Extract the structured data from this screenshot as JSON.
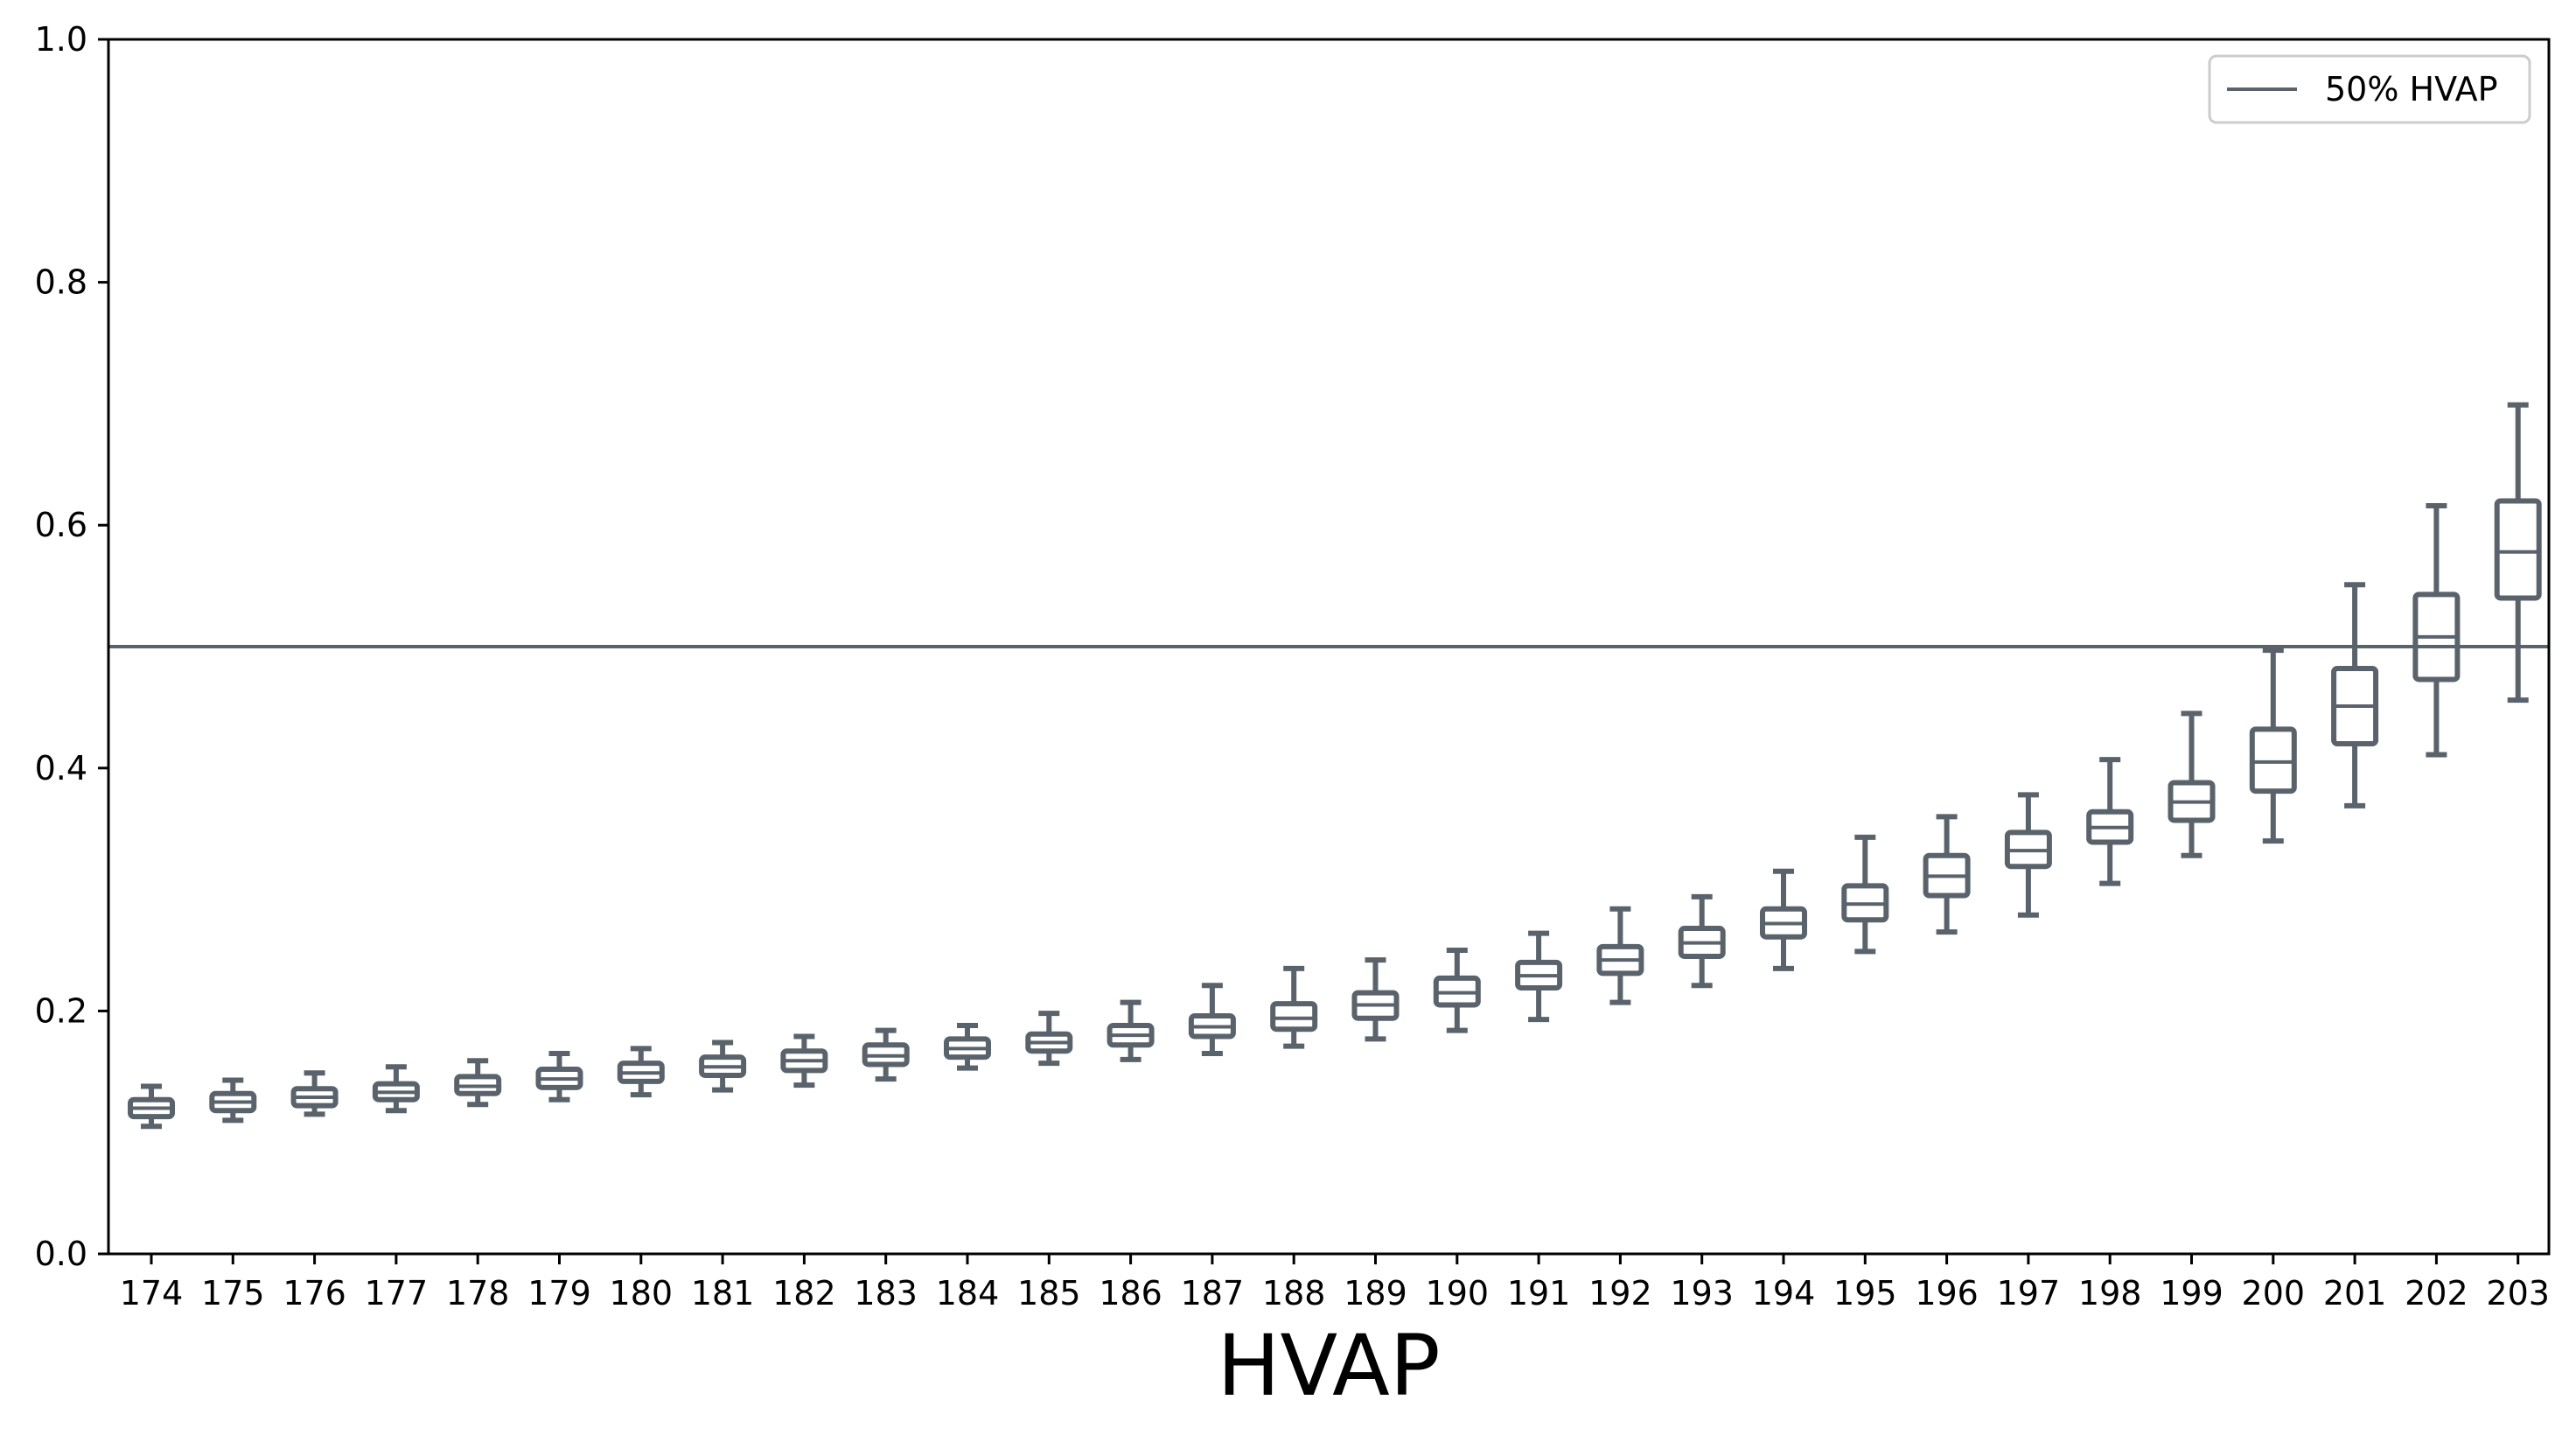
{
  "chart_data": {
    "type": "box",
    "title": "",
    "xlabel": "HVAP",
    "ylabel": "",
    "ylim": [
      0.0,
      1.0
    ],
    "yticks": [
      "0.0",
      "0.2",
      "0.4",
      "0.6",
      "0.8",
      "1.0"
    ],
    "grid": false,
    "legend": {
      "placement": "top-right",
      "entries": [
        {
          "label": "50% HVAP",
          "kind": "line"
        }
      ]
    },
    "reference_line": {
      "y": 0.5,
      "label": "50% HVAP"
    },
    "colors": {
      "box": "#5a636b",
      "reference": "#5a636b",
      "axis": "#000000"
    },
    "categories": [
      "174",
      "175",
      "176",
      "177",
      "178",
      "179",
      "180",
      "181",
      "182",
      "183",
      "184",
      "185",
      "186",
      "187",
      "188",
      "189",
      "190",
      "191",
      "192",
      "193",
      "194",
      "195",
      "196",
      "197",
      "198",
      "199",
      "200",
      "201",
      "202",
      "203"
    ],
    "boxes": [
      {
        "whislo": 0.105,
        "q1": 0.113,
        "med": 0.12,
        "q3": 0.127,
        "whishi": 0.138
      },
      {
        "whislo": 0.11,
        "q1": 0.118,
        "med": 0.125,
        "q3": 0.132,
        "whishi": 0.143
      },
      {
        "whislo": 0.115,
        "q1": 0.122,
        "med": 0.129,
        "q3": 0.136,
        "whishi": 0.149
      },
      {
        "whislo": 0.118,
        "q1": 0.127,
        "med": 0.133,
        "q3": 0.14,
        "whishi": 0.154
      },
      {
        "whislo": 0.123,
        "q1": 0.132,
        "med": 0.138,
        "q3": 0.146,
        "whishi": 0.159
      },
      {
        "whislo": 0.127,
        "q1": 0.137,
        "med": 0.144,
        "q3": 0.152,
        "whishi": 0.165
      },
      {
        "whislo": 0.131,
        "q1": 0.142,
        "med": 0.149,
        "q3": 0.157,
        "whishi": 0.169
      },
      {
        "whislo": 0.135,
        "q1": 0.147,
        "med": 0.154,
        "q3": 0.162,
        "whishi": 0.174
      },
      {
        "whislo": 0.139,
        "q1": 0.151,
        "med": 0.159,
        "q3": 0.167,
        "whishi": 0.179
      },
      {
        "whislo": 0.144,
        "q1": 0.156,
        "med": 0.163,
        "q3": 0.172,
        "whishi": 0.184
      },
      {
        "whislo": 0.153,
        "q1": 0.162,
        "med": 0.169,
        "q3": 0.177,
        "whishi": 0.188
      },
      {
        "whislo": 0.157,
        "q1": 0.167,
        "med": 0.174,
        "q3": 0.181,
        "whishi": 0.198
      },
      {
        "whislo": 0.16,
        "q1": 0.172,
        "med": 0.18,
        "q3": 0.188,
        "whishi": 0.207
      },
      {
        "whislo": 0.165,
        "q1": 0.179,
        "med": 0.187,
        "q3": 0.196,
        "whishi": 0.221
      },
      {
        "whislo": 0.171,
        "q1": 0.185,
        "med": 0.194,
        "q3": 0.206,
        "whishi": 0.235
      },
      {
        "whislo": 0.177,
        "q1": 0.194,
        "med": 0.205,
        "q3": 0.215,
        "whishi": 0.242
      },
      {
        "whislo": 0.184,
        "q1": 0.205,
        "med": 0.215,
        "q3": 0.227,
        "whishi": 0.25
      },
      {
        "whislo": 0.193,
        "q1": 0.219,
        "med": 0.229,
        "q3": 0.24,
        "whishi": 0.264
      },
      {
        "whislo": 0.207,
        "q1": 0.231,
        "med": 0.242,
        "q3": 0.253,
        "whishi": 0.284
      },
      {
        "whislo": 0.221,
        "q1": 0.245,
        "med": 0.256,
        "q3": 0.268,
        "whishi": 0.294
      },
      {
        "whislo": 0.235,
        "q1": 0.261,
        "med": 0.272,
        "q3": 0.284,
        "whishi": 0.315
      },
      {
        "whislo": 0.249,
        "q1": 0.275,
        "med": 0.288,
        "q3": 0.303,
        "whishi": 0.343
      },
      {
        "whislo": 0.265,
        "q1": 0.295,
        "med": 0.311,
        "q3": 0.328,
        "whishi": 0.36
      },
      {
        "whislo": 0.279,
        "q1": 0.319,
        "med": 0.332,
        "q3": 0.347,
        "whishi": 0.378
      },
      {
        "whislo": 0.305,
        "q1": 0.339,
        "med": 0.351,
        "q3": 0.364,
        "whishi": 0.407
      },
      {
        "whislo": 0.328,
        "q1": 0.357,
        "med": 0.372,
        "q3": 0.388,
        "whishi": 0.445
      },
      {
        "whislo": 0.34,
        "q1": 0.381,
        "med": 0.405,
        "q3": 0.432,
        "whishi": 0.497
      },
      {
        "whislo": 0.369,
        "q1": 0.42,
        "med": 0.451,
        "q3": 0.482,
        "whishi": 0.551
      },
      {
        "whislo": 0.411,
        "q1": 0.473,
        "med": 0.508,
        "q3": 0.543,
        "whishi": 0.616
      },
      {
        "whislo": 0.456,
        "q1": 0.54,
        "med": 0.578,
        "q3": 0.62,
        "whishi": 0.699
      }
    ]
  }
}
